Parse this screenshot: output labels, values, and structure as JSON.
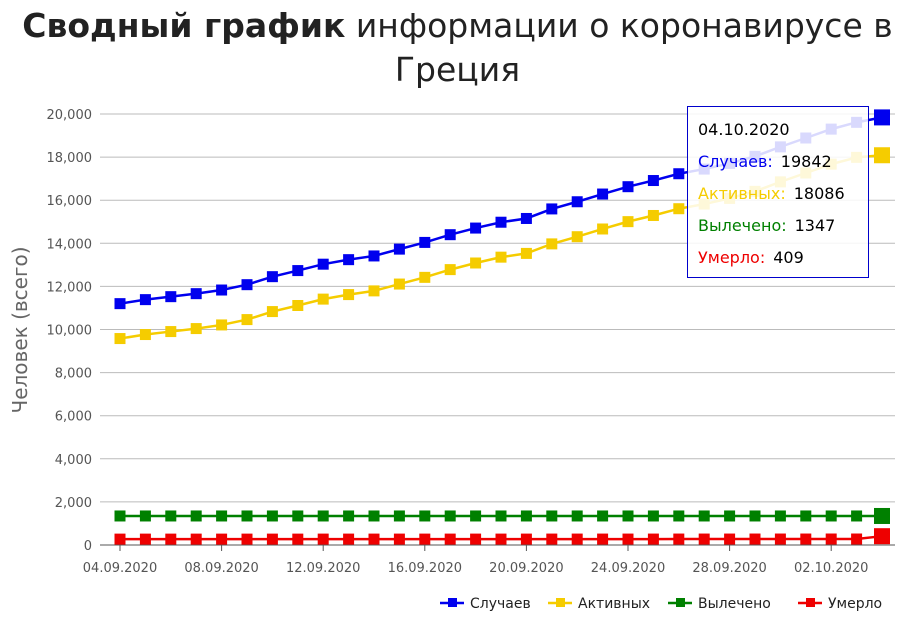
{
  "title": {
    "bold": "Сводный график",
    "rest": "информации о коронавирусе в Греция"
  },
  "colors": {
    "cases": "#0000ee",
    "active": "#f5cc00",
    "recovered": "#008000",
    "deaths": "#ee0000",
    "grid": "#bbbbbb",
    "axis": "#555555"
  },
  "tooltip": {
    "date": "04.10.2020",
    "rows": [
      {
        "label": "Случаев:",
        "value": "19842"
      },
      {
        "label": "Активных:",
        "value": "18086"
      },
      {
        "label": "Вылечено:",
        "value": "1347"
      },
      {
        "label": "Умерло:",
        "value": "409"
      }
    ]
  },
  "chart_data": {
    "type": "line",
    "title": "Сводный график информации о коронавирусе в Греция",
    "xlabel": "",
    "ylabel": "Человек (всего)",
    "ylim": [
      0,
      20000
    ],
    "yticks": [
      0,
      2000,
      4000,
      6000,
      8000,
      10000,
      12000,
      14000,
      16000,
      18000,
      20000
    ],
    "ytick_labels": [
      "0",
      "2,000",
      "4,000",
      "6,000",
      "8,000",
      "10,000",
      "12,000",
      "14,000",
      "16,000",
      "18,000",
      "20,000"
    ],
    "xtick_labels": [
      "04.09.2020",
      "08.09.2020",
      "12.09.2020",
      "16.09.2020",
      "20.09.2020",
      "24.09.2020",
      "28.09.2020",
      "02.10.2020"
    ],
    "grid": true,
    "legend_position": "bottom-right",
    "x": [
      "04.09.2020",
      "05.09.2020",
      "06.09.2020",
      "07.09.2020",
      "08.09.2020",
      "09.09.2020",
      "10.09.2020",
      "11.09.2020",
      "12.09.2020",
      "13.09.2020",
      "14.09.2020",
      "15.09.2020",
      "16.09.2020",
      "17.09.2020",
      "18.09.2020",
      "19.09.2020",
      "20.09.2020",
      "21.09.2020",
      "22.09.2020",
      "23.09.2020",
      "24.09.2020",
      "25.09.2020",
      "26.09.2020",
      "27.09.2020",
      "28.09.2020",
      "29.09.2020",
      "30.09.2020",
      "01.10.2020",
      "02.10.2020",
      "03.10.2020",
      "04.10.2020"
    ],
    "series": [
      {
        "name": "Случаев",
        "color": "#0000ee",
        "values": [
          11200,
          11386,
          11524,
          11663,
          11832,
          12080,
          12452,
          12734,
          13031,
          13241,
          13413,
          13730,
          14041,
          14400,
          14707,
          14978,
          15152,
          15595,
          15928,
          16286,
          16627,
          16913,
          17228,
          17444,
          17707,
          18035,
          18475,
          18886,
          19298,
          19613,
          19842
        ]
      },
      {
        "name": "Активных",
        "color": "#f5cc00",
        "values": [
          9580,
          9766,
          9904,
          10043,
          10212,
          10460,
          10832,
          11114,
          11410,
          11620,
          11792,
          12109,
          12420,
          12779,
          13086,
          13357,
          13531,
          13973,
          14306,
          14664,
          15005,
          15291,
          15605,
          15821,
          16084,
          16411,
          16851,
          17262,
          17673,
          17988,
          18086
        ]
      },
      {
        "name": "Вылечено",
        "color": "#008000",
        "values": [
          1347,
          1347,
          1347,
          1347,
          1347,
          1347,
          1347,
          1347,
          1347,
          1347,
          1347,
          1347,
          1347,
          1347,
          1347,
          1347,
          1347,
          1347,
          1347,
          1347,
          1347,
          1347,
          1347,
          1347,
          1347,
          1347,
          1347,
          1347,
          1347,
          1347,
          1347
        ]
      },
      {
        "name": "Умерло",
        "color": "#ee0000",
        "values": [
          273,
          273,
          273,
          273,
          273,
          273,
          273,
          273,
          274,
          274,
          274,
          274,
          274,
          274,
          274,
          274,
          274,
          275,
          275,
          275,
          275,
          275,
          276,
          276,
          276,
          277,
          277,
          277,
          278,
          278,
          409
        ]
      }
    ]
  }
}
